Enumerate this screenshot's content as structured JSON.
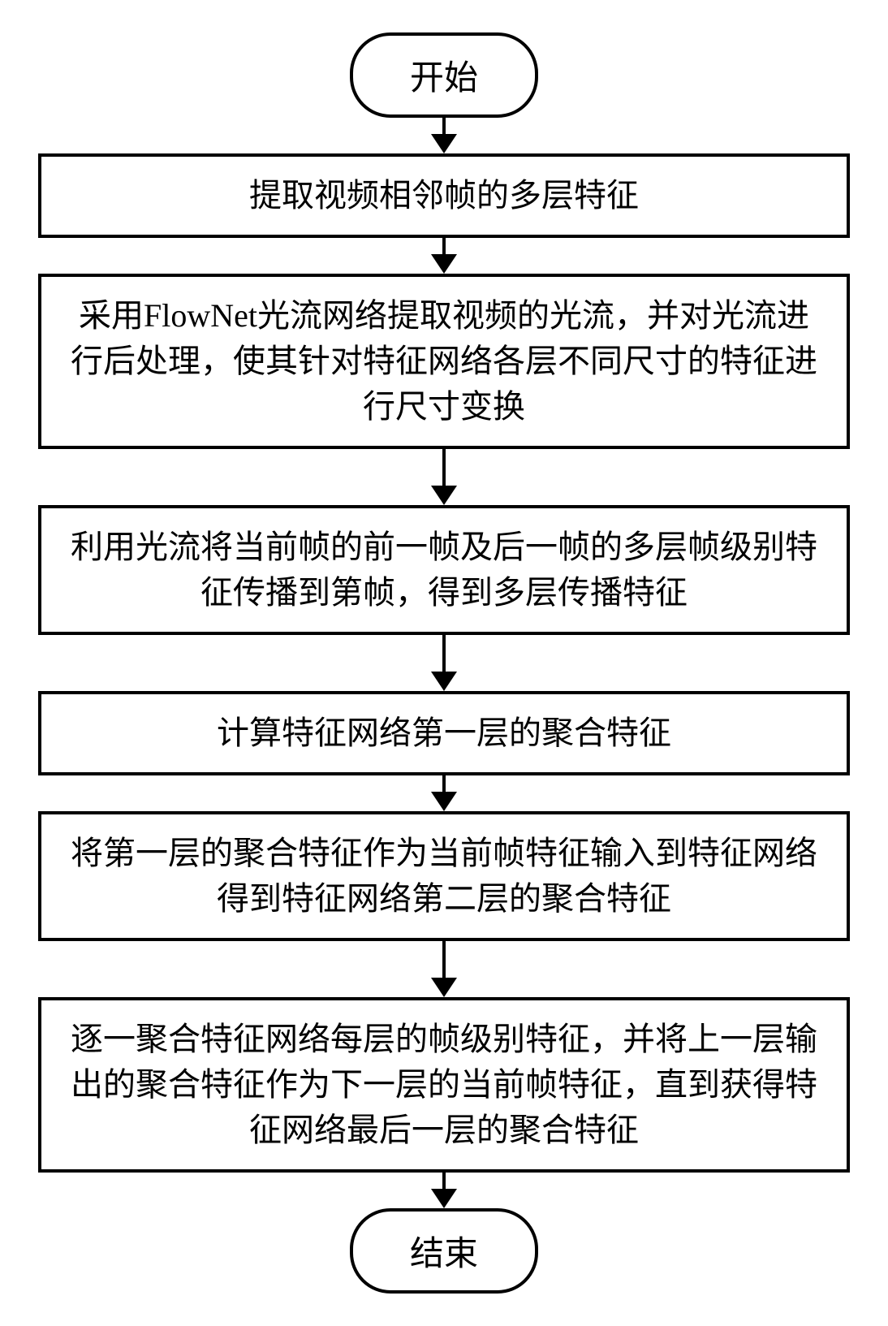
{
  "flowchart": {
    "type": "flowchart",
    "background_color": "#ffffff",
    "border_color": "#000000",
    "border_width": 4,
    "text_color": "#000000",
    "font_family": "SimSun",
    "font_size": 40,
    "terminal_font_size": 42,
    "terminal_border_radius": 50,
    "arrow_color": "#000000",
    "arrow_head_width": 32,
    "arrow_head_height": 24,
    "line_height": 1.4,
    "nodes": {
      "start": {
        "shape": "terminal",
        "label": "开始"
      },
      "step1": {
        "shape": "process",
        "label": "提取视频相邻帧的多层特征"
      },
      "step2": {
        "shape": "process",
        "label": "采用FlowNet光流网络提取视频的光流，并对光流进行后处理，使其针对特征网络各层不同尺寸的特征进行尺寸变换"
      },
      "step3": {
        "shape": "process",
        "label": "利用光流将当前帧的前一帧及后一帧的多层帧级别特征传播到第帧，得到多层传播特征"
      },
      "step4": {
        "shape": "process",
        "label": "计算特征网络第一层的聚合特征"
      },
      "step5": {
        "shape": "process",
        "label": "将第一层的聚合特征作为当前帧特征输入到特征网络得到特征网络第二层的聚合特征"
      },
      "step6": {
        "shape": "process",
        "label": "逐一聚合特征网络每层的帧级别特征，并将上一层输出的聚合特征作为下一层的当前帧特征，直到获得特征网络最后一层的聚合特征"
      },
      "end": {
        "shape": "terminal",
        "label": "结束"
      }
    },
    "edges": [
      {
        "from": "start",
        "to": "step1",
        "length": "short"
      },
      {
        "from": "step1",
        "to": "step2",
        "length": "short"
      },
      {
        "from": "step2",
        "to": "step3",
        "length": "medium"
      },
      {
        "from": "step3",
        "to": "step4",
        "length": "medium"
      },
      {
        "from": "step4",
        "to": "step5",
        "length": "short"
      },
      {
        "from": "step5",
        "to": "step6",
        "length": "medium"
      },
      {
        "from": "step6",
        "to": "end",
        "length": "short"
      }
    ]
  }
}
